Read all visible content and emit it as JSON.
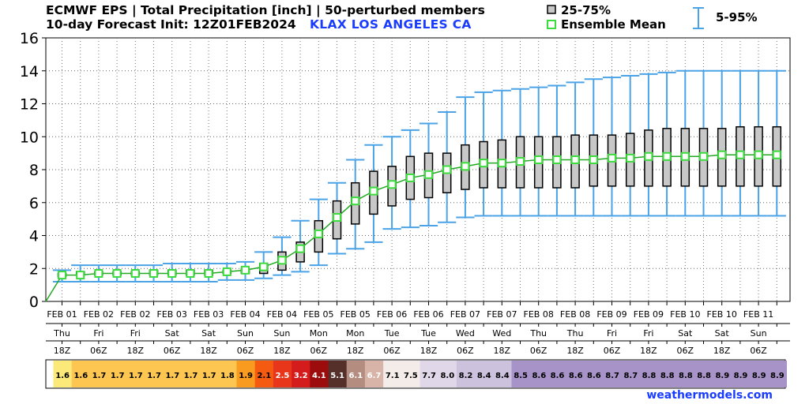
{
  "header": {
    "line1": "ECMWF EPS | Total Precipitation [inch] | 50-perturbed members",
    "line2": "10-day Forecast Init: 12Z01FEB2024",
    "station": "KLAX  LOS ANGELES     CA"
  },
  "legend": {
    "box_label": "25-75%",
    "mean_label": "Ensemble Mean",
    "whisker_label": "5-95%"
  },
  "credit": "weathermodels.com",
  "colors": {
    "whisker": "#4aa3e6",
    "box_fill": "#c8c8c8",
    "mean_line": "#22aa22",
    "mean_marker": "#3ddc3d"
  },
  "chart_data": {
    "type": "box",
    "title": "ECMWF EPS | Total Precipitation [inch] | 50-perturbed members",
    "ylabel": "",
    "ylim": [
      0,
      16
    ],
    "yticks": [
      0,
      2,
      4,
      6,
      8,
      10,
      12,
      14,
      16
    ],
    "grid": true,
    "legend_position": "top-right",
    "steps": [
      {
        "date": "FEB 01",
        "day": "Thu",
        "hour": "18Z"
      },
      {
        "date": "FEB 02",
        "day": "Fri",
        "hour": "06Z"
      },
      {
        "date": "FEB 02",
        "day": "Fri",
        "hour": "18Z"
      },
      {
        "date": "FEB 03",
        "day": "Sat",
        "hour": "06Z"
      },
      {
        "date": "FEB 03",
        "day": "Sat",
        "hour": "18Z"
      },
      {
        "date": "FEB 04",
        "day": "Sun",
        "hour": "06Z"
      },
      {
        "date": "FEB 04",
        "day": "Sun",
        "hour": "18Z"
      },
      {
        "date": "FEB 05",
        "day": "Mon",
        "hour": "06Z"
      },
      {
        "date": "FEB 05",
        "day": "Mon",
        "hour": "18Z"
      },
      {
        "date": "FEB 06",
        "day": "Tue",
        "hour": "06Z"
      },
      {
        "date": "FEB 06",
        "day": "Tue",
        "hour": "18Z"
      },
      {
        "date": "FEB 07",
        "day": "Wed",
        "hour": "06Z"
      },
      {
        "date": "FEB 07",
        "day": "Wed",
        "hour": "18Z"
      },
      {
        "date": "FEB 08",
        "day": "Thu",
        "hour": "06Z"
      },
      {
        "date": "FEB 08",
        "day": "Thu",
        "hour": "18Z"
      },
      {
        "date": "FEB 09",
        "day": "Fri",
        "hour": "06Z"
      },
      {
        "date": "FEB 09",
        "day": "Fri",
        "hour": "18Z"
      },
      {
        "date": "FEB 10",
        "day": "Sat",
        "hour": "06Z"
      },
      {
        "date": "FEB 10",
        "day": "Sat",
        "hour": "18Z"
      },
      {
        "date": "FEB 11",
        "day": "Sun",
        "hour": "06Z"
      }
    ],
    "mean": [
      1.6,
      1.6,
      1.7,
      1.7,
      1.7,
      1.7,
      1.7,
      1.7,
      1.7,
      1.8,
      1.9,
      2.1,
      2.5,
      3.2,
      4.1,
      5.1,
      6.1,
      6.7,
      7.1,
      7.5,
      7.7,
      8.0,
      8.2,
      8.4,
      8.4,
      8.5,
      8.6,
      8.6,
      8.6,
      8.6,
      8.7,
      8.7,
      8.8,
      8.8,
      8.8,
      8.8,
      8.9,
      8.9,
      8.9,
      8.9
    ],
    "q25": [
      1.5,
      1.6,
      1.6,
      1.6,
      1.6,
      1.6,
      1.6,
      1.6,
      1.6,
      1.7,
      1.7,
      1.7,
      1.9,
      2.4,
      3.0,
      3.8,
      4.7,
      5.3,
      5.8,
      6.2,
      6.3,
      6.6,
      6.8,
      6.9,
      6.9,
      6.9,
      6.9,
      6.9,
      6.9,
      7.0,
      7.0,
      7.0,
      7.0,
      7.0,
      7.0,
      7.0,
      7.0,
      7.0,
      7.0,
      7.0
    ],
    "q75": [
      1.7,
      1.8,
      1.8,
      1.8,
      1.8,
      1.9,
      1.9,
      1.9,
      1.9,
      1.9,
      2.0,
      2.3,
      3.0,
      3.6,
      4.9,
      6.1,
      7.2,
      7.9,
      8.2,
      8.8,
      9.0,
      9.0,
      9.5,
      9.7,
      9.8,
      10.0,
      10.0,
      10.0,
      10.1,
      10.1,
      10.1,
      10.2,
      10.4,
      10.5,
      10.5,
      10.5,
      10.5,
      10.6,
      10.6,
      10.6
    ],
    "p05": [
      1.2,
      1.2,
      1.2,
      1.2,
      1.2,
      1.2,
      1.2,
      1.2,
      1.2,
      1.3,
      1.3,
      1.4,
      1.6,
      1.8,
      2.2,
      2.9,
      3.2,
      3.6,
      4.4,
      4.5,
      4.6,
      4.8,
      5.1,
      5.2,
      5.2,
      5.2,
      5.2,
      5.2,
      5.2,
      5.2,
      5.2,
      5.2,
      5.2,
      5.2,
      5.2,
      5.2,
      5.2,
      5.2,
      5.2,
      5.2
    ],
    "p95": [
      1.9,
      2.2,
      2.2,
      2.2,
      2.2,
      2.2,
      2.3,
      2.3,
      2.3,
      2.3,
      2.4,
      3.0,
      3.9,
      4.9,
      6.2,
      7.2,
      8.6,
      9.5,
      10.0,
      10.4,
      10.8,
      11.5,
      12.4,
      12.7,
      12.8,
      12.9,
      13.0,
      13.1,
      13.3,
      13.5,
      13.6,
      13.7,
      13.8,
      13.9,
      14.0,
      14.0,
      14.0,
      14.0,
      14.0,
      14.0
    ],
    "bar_values": [
      "1.6",
      "1.6",
      "1.7",
      "1.7",
      "1.7",
      "1.7",
      "1.7",
      "1.7",
      "1.7",
      "1.8",
      "1.9",
      "2.1",
      "2.5",
      "3.2",
      "4.1",
      "5.1",
      "6.1",
      "6.7",
      "7.1",
      "7.5",
      "7.7",
      "8.0",
      "8.2",
      "8.4",
      "8.4",
      "8.5",
      "8.6",
      "8.6",
      "8.6",
      "8.6",
      "8.7",
      "8.7",
      "8.8",
      "8.8",
      "8.8",
      "8.8",
      "8.9",
      "8.9",
      "8.9",
      "8.9"
    ],
    "bar_colors": [
      "#fbe97a",
      "#fcc651",
      "#fcc651",
      "#fcc651",
      "#fcc651",
      "#fcc651",
      "#fcc651",
      "#fcc651",
      "#fcc651",
      "#fcc651",
      "#f99b1e",
      "#f45a10",
      "#e8361a",
      "#d41c1c",
      "#9c0c0c",
      "#55302a",
      "#b48c80",
      "#d8b4a8",
      "#f4ece8",
      "#f4ece8",
      "#e0d8e8",
      "#e0d8e8",
      "#ccc2de",
      "#ccc2de",
      "#ccc2de",
      "#a893c8",
      "#a893c8",
      "#a893c8",
      "#a893c8",
      "#a893c8",
      "#a893c8",
      "#a893c8",
      "#a893c8",
      "#a893c8",
      "#a893c8",
      "#a893c8",
      "#a893c8",
      "#a893c8",
      "#a893c8",
      "#a893c8"
    ]
  }
}
